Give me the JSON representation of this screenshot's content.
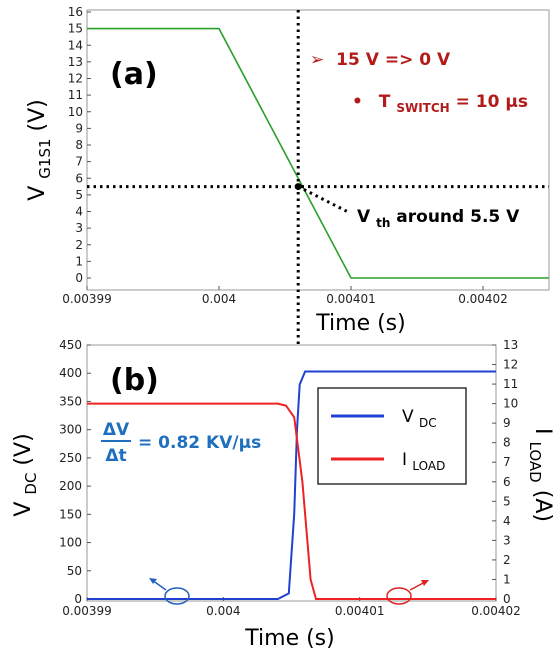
{
  "chart_data": [
    {
      "panel": "(a)",
      "type": "line",
      "xlabel": "Time (s)",
      "ylabel_main": "V",
      "ylabel_sub": "G1S1",
      "ylabel_unit": " (V)",
      "xlim": [
        0.00399,
        0.004025
      ],
      "ylim": [
        0,
        16
      ],
      "x_ticks": [
        0.00399,
        0.004,
        0.00401,
        0.00402
      ],
      "x_tick_labels": [
        "0.00399",
        "0.004",
        "0.00401",
        "0.00402"
      ],
      "y_ticks": [
        0,
        1,
        2,
        3,
        4,
        5,
        6,
        7,
        8,
        9,
        10,
        11,
        12,
        13,
        14,
        15,
        16
      ],
      "grid": false,
      "series": [
        {
          "color": "#2aa02a",
          "x": [
            0.00399,
            0.004,
            0.00401,
            0.004025
          ],
          "y": [
            15,
            15,
            0,
            0
          ]
        }
      ],
      "crosshair": {
        "x": 0.004006,
        "y": 5.5
      },
      "annotations": {
        "line1_arrow": "➢",
        "line1": "15 V => 0 V",
        "line2_bullet": "•",
        "line2_main": "T",
        "line2_sub": "SWITCH",
        "line2_rest": " = 10 µs",
        "vth_main": "V",
        "vth_sub": "th",
        "vth_rest": " around 5.5 V"
      }
    },
    {
      "panel": "(b)",
      "type": "line",
      "xlabel": "Time (s)",
      "ylabel_left_main": "V",
      "ylabel_left_sub": "DC",
      "ylabel_left_unit": " (V)",
      "ylabel_right_main": "I",
      "ylabel_right_sub": "LOAD",
      "ylabel_right_unit": " (A)",
      "xlim": [
        0.00399,
        0.00402
      ],
      "ylim_left": [
        0,
        450
      ],
      "ylim_right": [
        0,
        13
      ],
      "x_ticks": [
        0.00399,
        0.004,
        0.00401,
        0.00402
      ],
      "x_tick_labels": [
        "0.00399",
        "0.004",
        "0.00401",
        "0.00402"
      ],
      "y_ticks_left": [
        0,
        50,
        100,
        150,
        200,
        250,
        300,
        350,
        400,
        450
      ],
      "y_ticks_right": [
        0,
        1,
        2,
        3,
        4,
        5,
        6,
        7,
        8,
        9,
        10,
        11,
        12,
        13
      ],
      "grid": false,
      "legend_position": "top-right",
      "series": [
        {
          "name_main": "V",
          "name_sub": "DC",
          "color": "#2040d0",
          "axis": "left",
          "x": [
            0.00399,
            0.004004,
            0.0040048,
            0.0040052,
            0.0040054,
            0.0040056,
            0.004006,
            0.00402
          ],
          "y": [
            0,
            0,
            10,
            150,
            300,
            380,
            403,
            403
          ]
        },
        {
          "name_main": "I",
          "name_sub": "LOAD",
          "color": "#ee2222",
          "axis": "right",
          "x": [
            0.00399,
            0.004004,
            0.0040046,
            0.0040052,
            0.0040058,
            0.0040064,
            0.0040068,
            0.00402
          ],
          "y": [
            10,
            10,
            9.9,
            9.3,
            6,
            1,
            0,
            0
          ]
        }
      ],
      "crosshair_x": 0.004006,
      "annotations": {
        "slope_num": "ΔV",
        "slope_den": "Δt",
        "slope_value": "= 0.82 KV/µs"
      }
    }
  ]
}
